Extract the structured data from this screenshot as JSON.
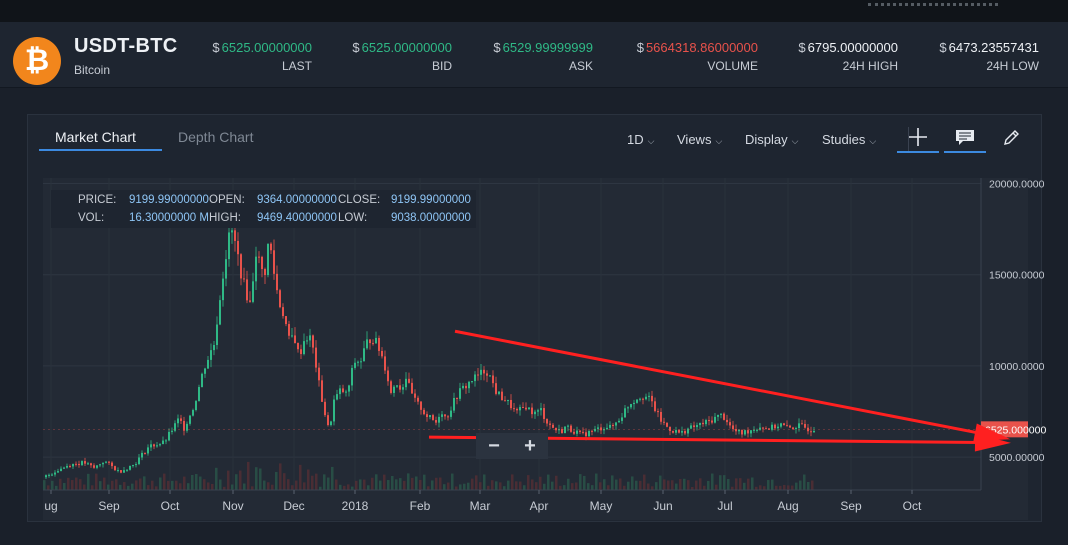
{
  "header": {
    "pair": "USDT-BTC",
    "coin_name": "Bitcoin",
    "coin_icon": "bitcoin-icon",
    "stats": [
      {
        "currency": "$",
        "value": "6525.00000000",
        "label": "LAST",
        "color": "#2fb986"
      },
      {
        "currency": "$",
        "value": "6525.00000000",
        "label": "BID",
        "color": "#2fb986"
      },
      {
        "currency": "$",
        "value": "6529.99999999",
        "label": "ASK",
        "color": "#2fb986"
      },
      {
        "currency": "$",
        "value": "5664318.86000000",
        "label": "VOLUME",
        "color": "#e8524b"
      },
      {
        "currency": "$",
        "value": "6795.00000000",
        "label": "24H HIGH",
        "color": "#eef1f5"
      },
      {
        "currency": "$",
        "value": "6473.23557431",
        "label": "24H LOW",
        "color": "#eef1f5"
      }
    ]
  },
  "tabs": {
    "market": "Market Chart",
    "depth": "Depth Chart"
  },
  "toolbar": {
    "interval": "1D",
    "views": "Views",
    "display": "Display",
    "studies": "Studies",
    "icons": [
      "crosshair-icon",
      "comment-icon",
      "pencil-icon"
    ]
  },
  "info": {
    "price_label": "PRICE:",
    "price": "9199.99000000",
    "open_label": "OPEN:",
    "open": "9364.00000000",
    "close_label": "CLOSE:",
    "close": "9199.99000000",
    "vol_label": "VOL:",
    "vol": "16.30000000 M",
    "high_label": "HIGH:",
    "high": "9469.40000000",
    "low_label": "LOW:",
    "low": "9038.00000000"
  },
  "zoom": {
    "minus": "−",
    "plus": "+"
  },
  "chart_data": {
    "type": "candlestick",
    "y_ticks": [
      "20000.0000",
      "15000.0000",
      "10000.0000",
      "5000.00000"
    ],
    "ylim": [
      3200,
      20300
    ],
    "x_labels": [
      "ug",
      "Sep",
      "Oct",
      "Nov",
      "Dec",
      "2018",
      "Feb",
      "Mar",
      "Apr",
      "May",
      "Jun",
      "Jul",
      "Aug",
      "Sep",
      "Oct"
    ],
    "current_price_tag": "6525.000000",
    "up_color": "#2fb986",
    "down_color": "#e8524b",
    "close_path": [
      [
        0,
        3900
      ],
      [
        14,
        4300
      ],
      [
        26,
        4600
      ],
      [
        40,
        4700
      ],
      [
        50,
        4400
      ],
      [
        60,
        4800
      ],
      [
        75,
        4200
      ],
      [
        90,
        4600
      ],
      [
        105,
        5600
      ],
      [
        120,
        5800
      ],
      [
        135,
        7100
      ],
      [
        140,
        6600
      ],
      [
        150,
        7800
      ],
      [
        160,
        9900
      ],
      [
        170,
        11200
      ],
      [
        180,
        15500
      ],
      [
        187,
        17600
      ],
      [
        193,
        16200
      ],
      [
        200,
        14400
      ],
      [
        206,
        13400
      ],
      [
        212,
        16300
      ],
      [
        220,
        14800
      ],
      [
        225,
        17000
      ],
      [
        230,
        15100
      ],
      [
        235,
        13500
      ],
      [
        240,
        12800
      ],
      [
        245,
        11400
      ],
      [
        250,
        11700
      ],
      [
        255,
        10500
      ],
      [
        260,
        11400
      ],
      [
        265,
        11700
      ],
      [
        270,
        10700
      ],
      [
        275,
        9000
      ],
      [
        280,
        7600
      ],
      [
        285,
        6400
      ],
      [
        290,
        8100
      ],
      [
        297,
        8700
      ],
      [
        303,
        8400
      ],
      [
        310,
        10200
      ],
      [
        317,
        10300
      ],
      [
        322,
        11200
      ],
      [
        328,
        11600
      ],
      [
        333,
        11200
      ],
      [
        338,
        10500
      ],
      [
        342,
        9800
      ],
      [
        347,
        8500
      ],
      [
        352,
        9200
      ],
      [
        357,
        8700
      ],
      [
        362,
        9400
      ],
      [
        367,
        8500
      ],
      [
        372,
        8000
      ],
      [
        377,
        7700
      ],
      [
        382,
        7300
      ],
      [
        387,
        7100
      ],
      [
        392,
        6900
      ],
      [
        397,
        7600
      ],
      [
        402,
        7100
      ],
      [
        407,
        7700
      ],
      [
        412,
        8300
      ],
      [
        417,
        8700
      ],
      [
        422,
        8900
      ],
      [
        427,
        9200
      ],
      [
        432,
        9400
      ],
      [
        437,
        9600
      ],
      [
        442,
        9800
      ],
      [
        447,
        9300
      ],
      [
        452,
        8600
      ],
      [
        457,
        8300
      ],
      [
        462,
        8100
      ],
      [
        467,
        7800
      ],
      [
        472,
        7400
      ],
      [
        477,
        7600
      ],
      [
        482,
        7800
      ],
      [
        487,
        7500
      ],
      [
        492,
        7400
      ],
      [
        497,
        7600
      ],
      [
        502,
        7000
      ],
      [
        507,
        6700
      ],
      [
        512,
        6500
      ],
      [
        517,
        6400
      ],
      [
        522,
        6700
      ],
      [
        527,
        6500
      ],
      [
        532,
        6400
      ],
      [
        537,
        6200
      ],
      [
        542,
        6300
      ],
      [
        547,
        6400
      ],
      [
        552,
        6500
      ],
      [
        557,
        6600
      ],
      [
        562,
        6700
      ],
      [
        567,
        6600
      ],
      [
        572,
        6900
      ],
      [
        577,
        7200
      ],
      [
        582,
        7700
      ],
      [
        587,
        8000
      ],
      [
        592,
        8200
      ],
      [
        597,
        8400
      ],
      [
        602,
        8300
      ],
      [
        607,
        8100
      ],
      [
        612,
        7500
      ],
      [
        617,
        7000
      ],
      [
        622,
        6700
      ],
      [
        627,
        6500
      ],
      [
        632,
        6400
      ],
      [
        637,
        6300
      ],
      [
        642,
        6500
      ],
      [
        647,
        6600
      ],
      [
        652,
        6700
      ],
      [
        657,
        6800
      ],
      [
        662,
        6900
      ],
      [
        667,
        7000
      ],
      [
        672,
        7200
      ],
      [
        677,
        7300
      ],
      [
        682,
        7100
      ],
      [
        687,
        6600
      ],
      [
        692,
        6400
      ],
      [
        697,
        6300
      ],
      [
        702,
        6400
      ],
      [
        707,
        6500
      ],
      [
        712,
        6600
      ],
      [
        717,
        6700
      ],
      [
        722,
        6600
      ],
      [
        727,
        6600
      ],
      [
        732,
        6700
      ],
      [
        737,
        6800
      ],
      [
        742,
        6600
      ],
      [
        747,
        6600
      ],
      [
        752,
        6700
      ],
      [
        757,
        6700
      ],
      [
        762,
        6600
      ],
      [
        767,
        6500
      ],
      [
        770,
        6600
      ]
    ],
    "annotations": [
      {
        "type": "trendline",
        "from": [
          412,
          11900
        ],
        "to": [
          938,
          6300
        ],
        "color": "#ff2020"
      },
      {
        "type": "trendline",
        "from": [
          386,
          6100
        ],
        "to": [
          938,
          5800
        ],
        "color": "#ff2020"
      }
    ]
  }
}
